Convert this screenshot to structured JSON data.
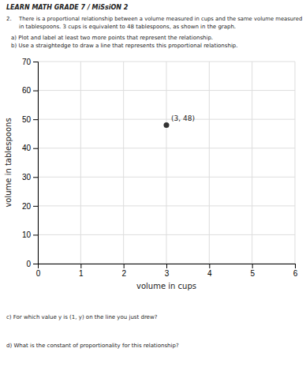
{
  "chart_data": {
    "type": "scatter",
    "title": "LEARN MATH GRADE 7 / MiSsiON 2",
    "annotations": [
      "2.",
      "There is a proportional relationship between a volume measured in cups and the same volume measured",
      "in tablespoons. 3 cups is equivalent to 48 tablespoons, as shown in the graph.",
      "a)   Plot and label at least two more points that represent the relationship.",
      "b)   Use a straightedge to draw a line that represents this proportional relationship.",
      "c)   For which value y is (1, y) on the line you just drew?",
      "d)   What is the constant of proportionality for this relationship?"
    ],
    "x_label": "volume in cups",
    "y_label": "volume in tablespoons",
    "x": [
      3
    ],
    "values": [
      48
    ],
    "value_labels": [
      "(3, 48)"
    ],
    "color": "#333333",
    "xlim": [
      0,
      6
    ],
    "ylim": [
      0,
      70
    ],
    "xticks": [
      0,
      1,
      2,
      3,
      4,
      5,
      6
    ],
    "yticks": [
      0,
      10,
      20,
      30,
      40,
      50,
      60,
      70
    ],
    "grid": true
  }
}
